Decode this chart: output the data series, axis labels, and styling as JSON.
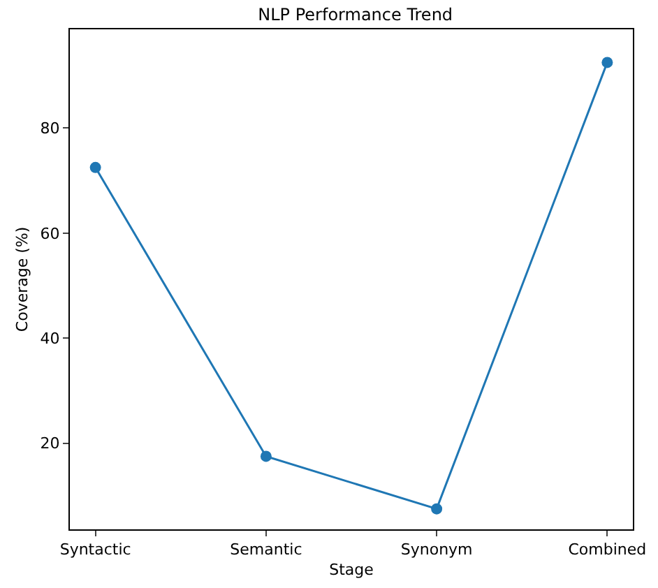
{
  "chart_data": {
    "type": "line",
    "title": "NLP Performance Trend",
    "xlabel": "Stage",
    "ylabel": "Coverage (%)",
    "categories": [
      "Syntactic",
      "Semantic",
      "Synonym",
      "Combined"
    ],
    "series": [
      {
        "color": "#1f77b4",
        "values": [
          72.5,
          17.5,
          7.5,
          92.5
        ]
      }
    ],
    "ylim": [
      3.6,
      98.8
    ],
    "yticks": [
      20,
      40,
      60,
      80
    ],
    "marker": "circle",
    "grid": false,
    "legend": false
  }
}
